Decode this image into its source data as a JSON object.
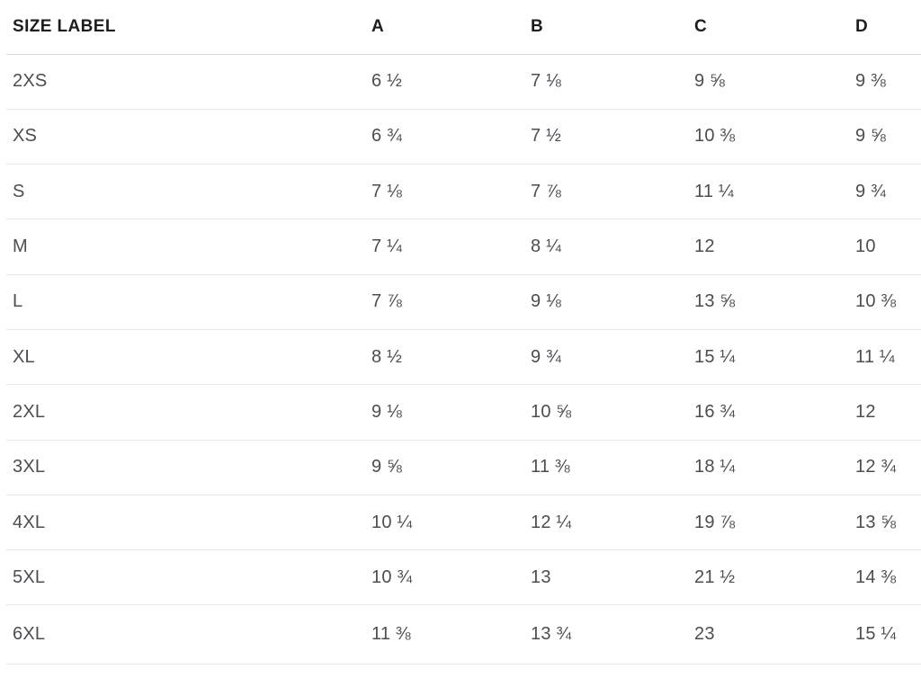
{
  "chart_data": {
    "type": "table",
    "columns": [
      "SIZE LABEL",
      "A",
      "B",
      "C",
      "D"
    ],
    "rows": [
      [
        "2XS",
        "6 ½",
        "7 ⅛",
        "9 ⅝",
        "9 ⅜"
      ],
      [
        "XS",
        "6 ¾",
        "7 ½",
        "10 ⅜",
        "9 ⅝"
      ],
      [
        "S",
        "7 ⅛",
        "7 ⅞",
        "11 ¼",
        "9 ¾"
      ],
      [
        "M",
        "7 ¼",
        "8 ¼",
        "12",
        "10"
      ],
      [
        "L",
        "7 ⅞",
        "9 ⅛",
        "13 ⅝",
        "10 ⅜"
      ],
      [
        "XL",
        "8 ½",
        "9 ¾",
        "15 ¼",
        "11 ¼"
      ],
      [
        "2XL",
        "9 ⅛",
        "10 ⅝",
        "16 ¾",
        "12"
      ],
      [
        "3XL",
        "9 ⅝",
        "11 ⅜",
        "18 ¼",
        "12 ¾"
      ],
      [
        "4XL",
        "10 ¼",
        "12 ¼",
        "19 ⅞",
        "13 ⅝"
      ],
      [
        "5XL",
        "10 ¾",
        "13",
        "21 ½",
        "14 ⅜"
      ],
      [
        "6XL",
        "11 ⅜",
        "13 ¾",
        "23",
        "15 ¼"
      ]
    ],
    "title": "",
    "layout": {
      "grid": "horizontal-dividers-only",
      "alignment": "left"
    }
  },
  "colors": {
    "header_text": "#1d1d1d",
    "body_text": "#4b4d51",
    "divider": "#e7e7e7",
    "header_divider": "#d9d9d9",
    "background": "#ffffff"
  }
}
